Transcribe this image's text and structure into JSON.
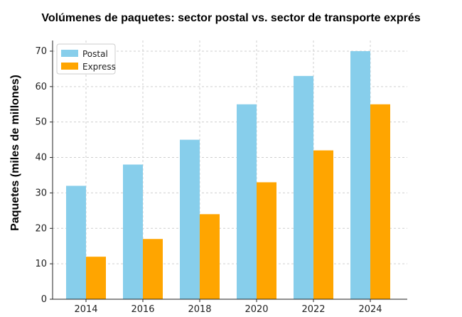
{
  "chart_data": {
    "type": "bar",
    "title": "Volúmenes de paquetes: sector postal vs. sector de transporte exprés",
    "xlabel": "",
    "ylabel": "Paquetes (miles de millones)",
    "categories": [
      "2014",
      "2016",
      "2018",
      "2020",
      "2022",
      "2024"
    ],
    "series": [
      {
        "name": "Postal",
        "values": [
          32,
          38,
          45,
          55,
          63,
          70
        ],
        "color": "#87CEEB"
      },
      {
        "name": "Express",
        "values": [
          12,
          17,
          24,
          33,
          42,
          55
        ],
        "color": "#FFA500"
      }
    ],
    "ylim": [
      0,
      73
    ],
    "yticks": [
      0,
      10,
      20,
      30,
      40,
      50,
      60,
      70
    ],
    "grid": true,
    "legend_position": "top-left"
  }
}
